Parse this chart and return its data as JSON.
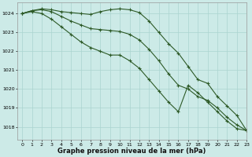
{
  "title": "Graphe pression niveau de la mer (hPa)",
  "bg_color": "#cceae7",
  "grid_color": "#aad4d0",
  "line_color": "#2d5a27",
  "xlim": [
    -0.5,
    23
  ],
  "ylim": [
    1017.3,
    1024.6
  ],
  "yticks": [
    1018,
    1019,
    1020,
    1021,
    1022,
    1023,
    1024
  ],
  "xticks": [
    0,
    1,
    2,
    3,
    4,
    5,
    6,
    7,
    8,
    9,
    10,
    11,
    12,
    13,
    14,
    15,
    16,
    17,
    18,
    19,
    20,
    21,
    22,
    23
  ],
  "series": [
    [
      1024.0,
      1024.15,
      1024.25,
      1024.2,
      1024.1,
      1024.05,
      1024.0,
      1023.95,
      1024.1,
      1024.2,
      1024.25,
      1024.2,
      1024.05,
      1023.6,
      1023.0,
      1022.4,
      1021.9,
      1021.2,
      1020.5,
      1020.3,
      1019.6,
      1019.1,
      1018.6,
      1017.8
    ],
    [
      1024.0,
      1024.15,
      1024.2,
      1024.1,
      1023.85,
      1023.6,
      1023.4,
      1023.2,
      1023.15,
      1023.1,
      1023.05,
      1022.9,
      1022.6,
      1022.1,
      1021.5,
      1020.8,
      1020.2,
      1020.0,
      1019.6,
      1019.4,
      1019.0,
      1018.5,
      1018.1,
      1017.8
    ],
    [
      1024.0,
      1024.1,
      1024.0,
      1023.7,
      1023.3,
      1022.9,
      1022.5,
      1022.2,
      1022.0,
      1021.8,
      1021.8,
      1021.5,
      1021.1,
      1020.5,
      1019.9,
      1019.3,
      1018.8,
      1020.2,
      1019.8,
      1019.3,
      1018.8,
      1018.3,
      1017.9,
      1017.8
    ]
  ]
}
